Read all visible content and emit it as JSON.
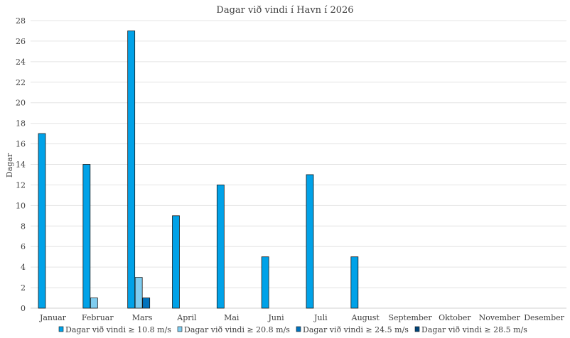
{
  "chart_data": {
    "type": "bar",
    "title": "Dagar við vindi í Havn í 2026",
    "ylabel": "Dagar",
    "xlabel": "",
    "ylim": [
      0,
      28
    ],
    "yticks": [
      0,
      2,
      4,
      6,
      8,
      10,
      12,
      14,
      16,
      18,
      20,
      22,
      24,
      26,
      28
    ],
    "grid": true,
    "legend_position": "bottom",
    "categories": [
      "Januar",
      "Februar",
      "Mars",
      "April",
      "Mai",
      "Juni",
      "Juli",
      "August",
      "September",
      "Oktober",
      "November",
      "Desember"
    ],
    "series": [
      {
        "name": "Dagar við vindi ≥ 10.8 m/s",
        "color": "#00a2e8",
        "values": [
          17,
          14,
          27,
          9,
          12,
          5,
          13,
          5,
          0,
          0,
          0,
          0
        ]
      },
      {
        "name": "Dagar við vindi ≥ 20.8 m/s",
        "color": "#7fcdf0",
        "values": [
          0,
          1,
          3,
          0,
          0,
          0,
          0,
          0,
          0,
          0,
          0,
          0
        ]
      },
      {
        "name": "Dagar við vindi ≥ 24.5 m/s",
        "color": "#0072bc",
        "values": [
          0,
          0,
          1,
          0,
          0,
          0,
          0,
          0,
          0,
          0,
          0,
          0
        ]
      },
      {
        "name": "Dagar við vindi ≥ 28.5 m/s",
        "color": "#00457a",
        "values": [
          0,
          0,
          0,
          0,
          0,
          0,
          0,
          0,
          0,
          0,
          0,
          0
        ]
      }
    ]
  }
}
